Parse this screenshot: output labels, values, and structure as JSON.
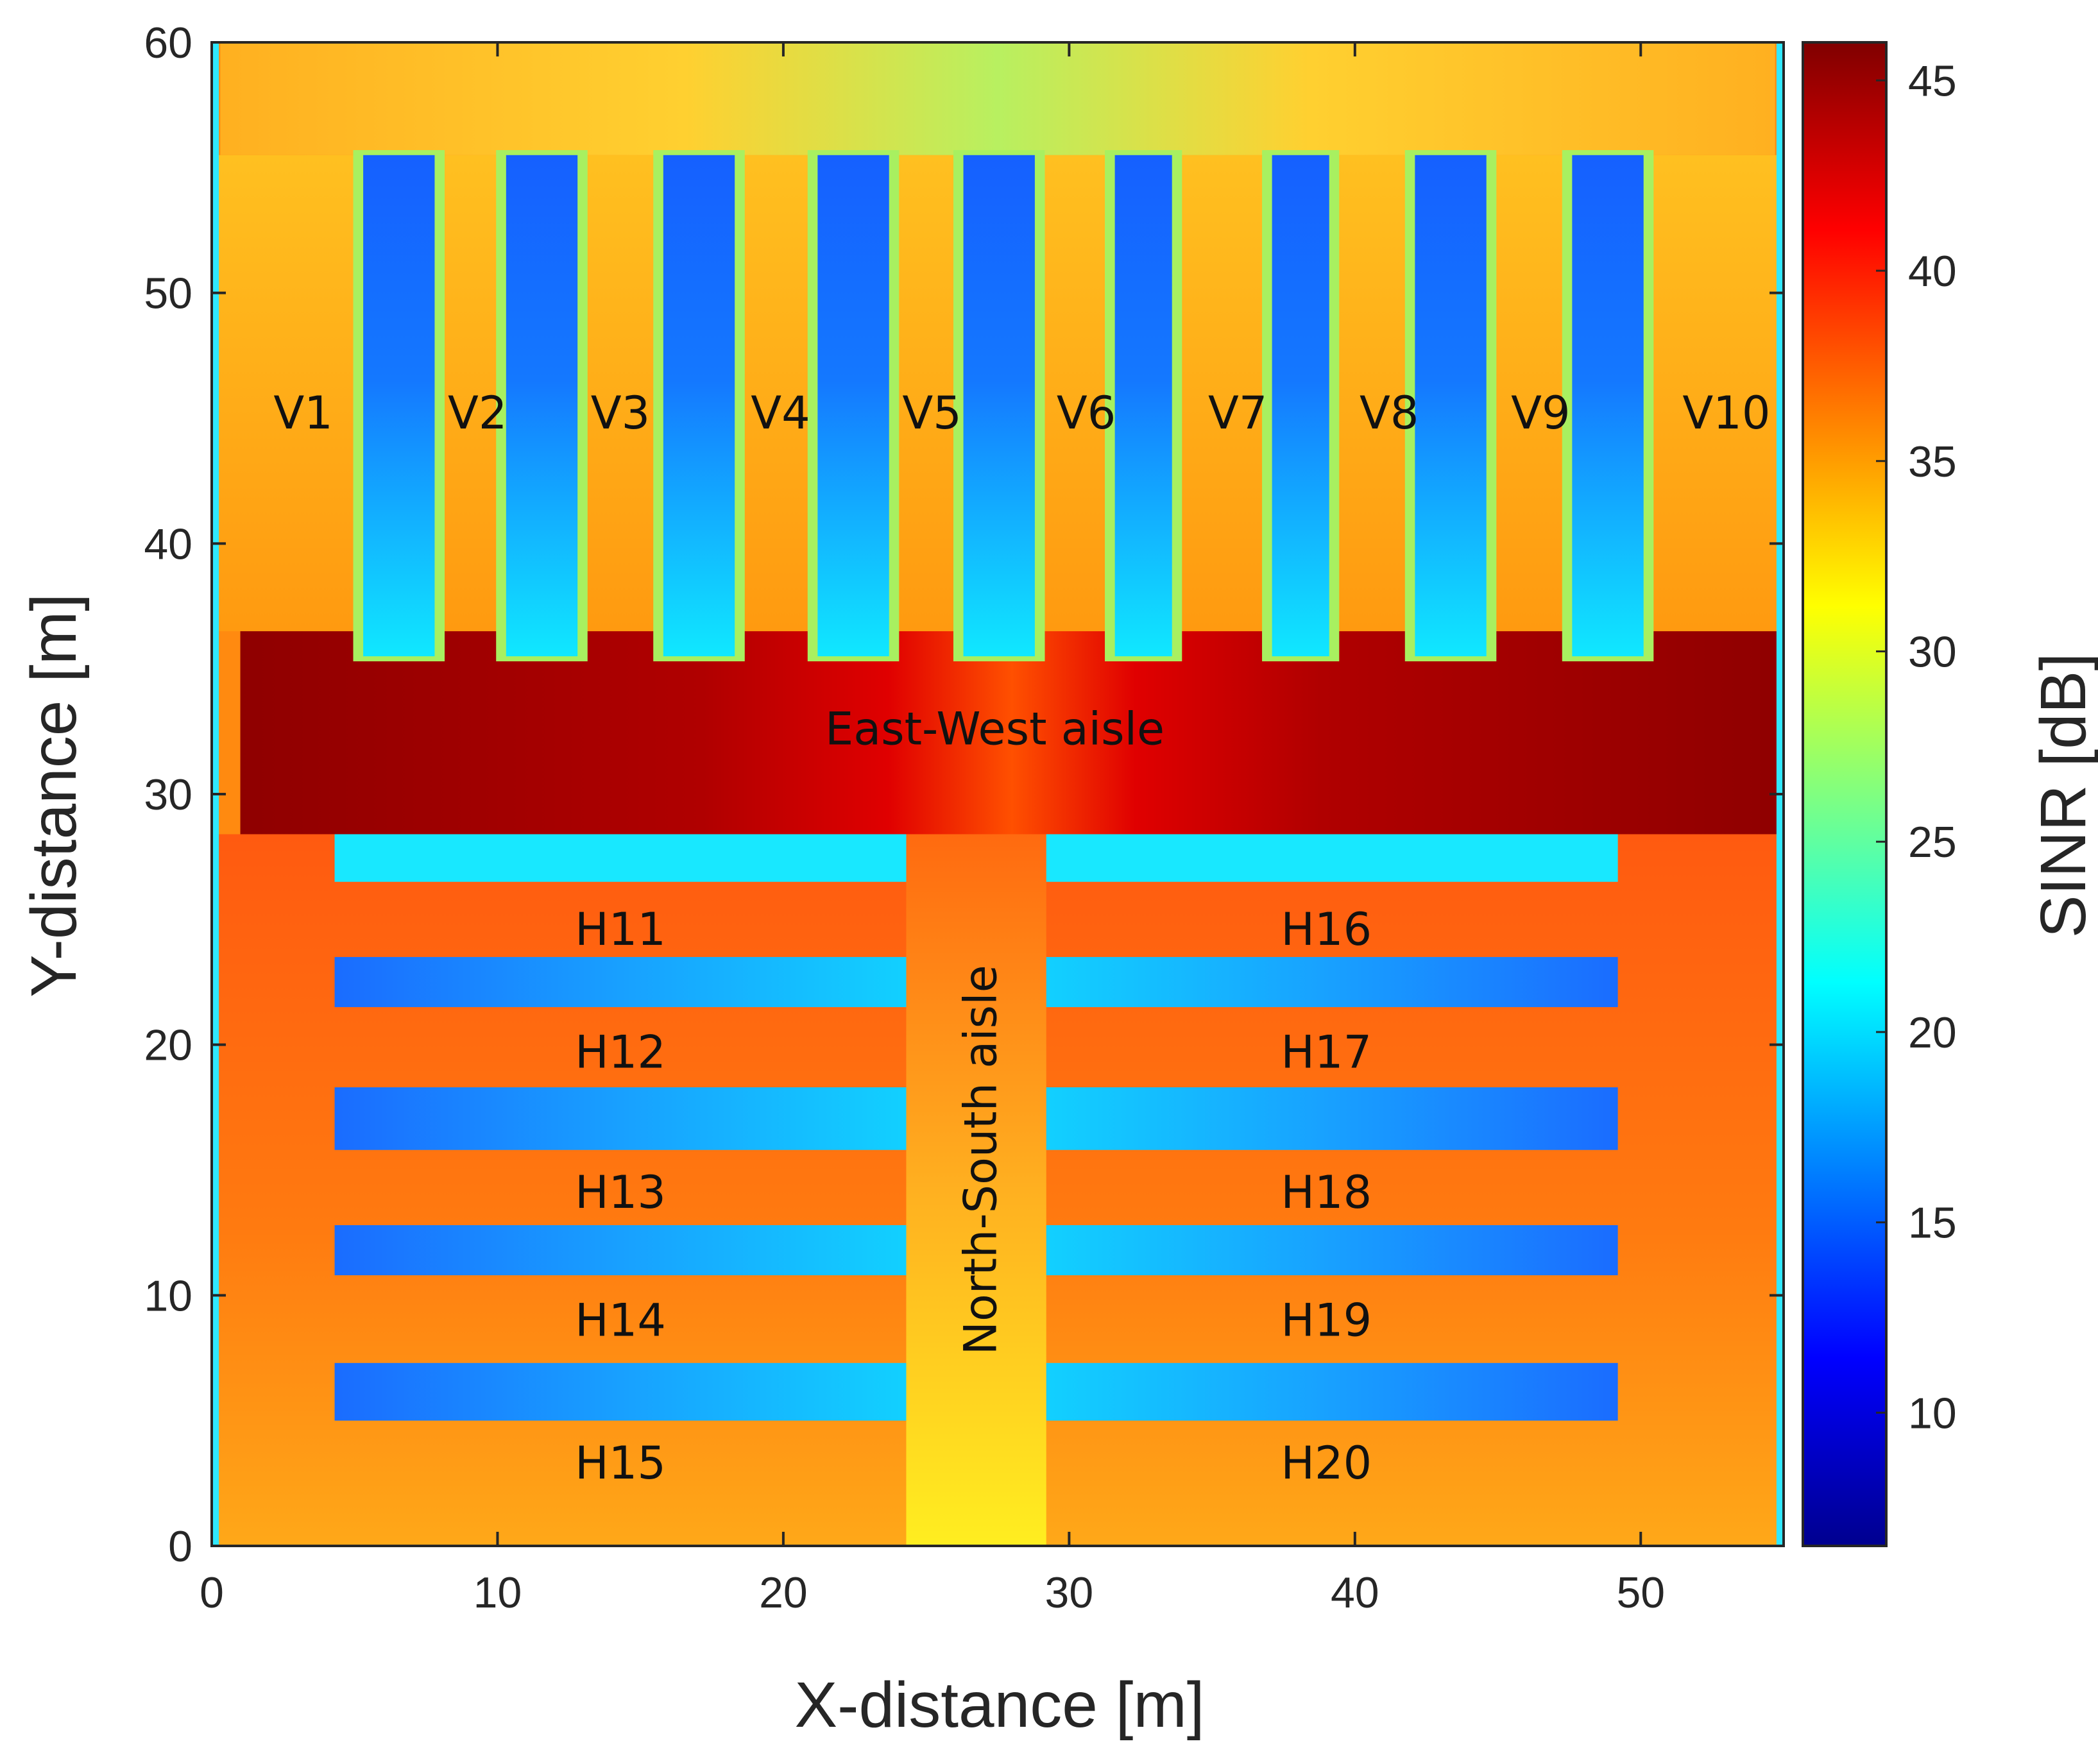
{
  "chart_data": {
    "type": "heatmap",
    "title": "",
    "xlabel": "X-distance [m]",
    "ylabel": "Y-distance [m]",
    "colorbar_label": "SINR [dB]",
    "xlim": [
      0,
      55
    ],
    "ylim": [
      0,
      60
    ],
    "clim": [
      6.5,
      46
    ],
    "x_ticks": [
      0,
      10,
      20,
      30,
      40,
      50
    ],
    "y_ticks": [
      0,
      10,
      20,
      30,
      40,
      50,
      60
    ],
    "colorbar_ticks": [
      10,
      15,
      20,
      25,
      30,
      35,
      40,
      45
    ],
    "colormap": [
      "#00008f",
      "#0000ff",
      "#0080ff",
      "#00ffff",
      "#80ff80",
      "#ffff00",
      "#ff8000",
      "#ff0000",
      "#800000"
    ],
    "regions": {
      "background_dB": 36,
      "east_west_aisle": {
        "x": [
          1,
          55
        ],
        "y": [
          28.4,
          36.5
        ],
        "sinr_dB": 44,
        "center_sinr_dB": 39
      },
      "north_south_aisle": {
        "x": [
          24.3,
          29.2
        ],
        "y": [
          0,
          28.4
        ],
        "sinr_dB": 33
      },
      "top_band": {
        "x": [
          0.3,
          54.7
        ],
        "y": [
          55.5,
          60
        ],
        "sinr_dB": 31
      },
      "vertical_racks": [
        {
          "x": [
            5.3,
            7.8
          ],
          "y": [
            35.5,
            55.5
          ]
        },
        {
          "x": [
            10.3,
            12.8
          ],
          "y": [
            35.5,
            55.5
          ]
        },
        {
          "x": [
            15.8,
            18.3
          ],
          "y": [
            35.5,
            55.5
          ]
        },
        {
          "x": [
            21.2,
            23.7
          ],
          "y": [
            35.5,
            55.5
          ]
        },
        {
          "x": [
            26.3,
            28.8
          ],
          "y": [
            35.5,
            55.5
          ]
        },
        {
          "x": [
            31.6,
            33.6
          ],
          "y": [
            35.5,
            55.5
          ]
        },
        {
          "x": [
            37.1,
            39.1
          ],
          "y": [
            35.5,
            55.5
          ]
        },
        {
          "x": [
            42.1,
            44.6
          ],
          "y": [
            35.5,
            55.5
          ]
        },
        {
          "x": [
            47.6,
            50.1
          ],
          "y": [
            35.5,
            55.5
          ]
        }
      ],
      "horizontal_racks": [
        {
          "y": [
            26.5,
            28.4
          ],
          "sinr_dB": 21
        },
        {
          "y": [
            21.5,
            23.5
          ],
          "sinr_dB": 19
        },
        {
          "y": [
            15.8,
            18.3
          ],
          "sinr_dB": 18.5
        },
        {
          "y": [
            10.8,
            12.8
          ],
          "sinr_dB": 18
        },
        {
          "y": [
            5.0,
            7.3
          ],
          "sinr_dB": 17.5
        }
      ],
      "horizontal_rack_x_spans": [
        [
          4.3,
          24.3
        ],
        [
          29.2,
          49.2
        ]
      ]
    },
    "annotations": [
      {
        "text": "V1",
        "x": 3.2,
        "y": 45.2
      },
      {
        "text": "V2",
        "x": 9.3,
        "y": 45.2
      },
      {
        "text": "V3",
        "x": 14.3,
        "y": 45.2
      },
      {
        "text": "V4",
        "x": 19.9,
        "y": 45.2
      },
      {
        "text": "V5",
        "x": 25.2,
        "y": 45.2
      },
      {
        "text": "V6",
        "x": 30.6,
        "y": 45.2
      },
      {
        "text": "V7",
        "x": 35.9,
        "y": 45.2
      },
      {
        "text": "V8",
        "x": 41.2,
        "y": 45.2
      },
      {
        "text": "V9",
        "x": 46.5,
        "y": 45.2
      },
      {
        "text": "V10",
        "x": 53.0,
        "y": 45.2
      },
      {
        "text": "East-West aisle",
        "x": 27.4,
        "y": 32.6
      },
      {
        "text": "North-South aisle",
        "x": 26.9,
        "y": 15.4,
        "rotation": -90
      },
      {
        "text": "H11",
        "x": 14.3,
        "y": 24.6
      },
      {
        "text": "H12",
        "x": 14.3,
        "y": 19.7
      },
      {
        "text": "H13",
        "x": 14.3,
        "y": 14.1
      },
      {
        "text": "H14",
        "x": 14.3,
        "y": 9.0
      },
      {
        "text": "H15",
        "x": 14.3,
        "y": 3.3
      },
      {
        "text": "H16",
        "x": 39.0,
        "y": 24.6
      },
      {
        "text": "H17",
        "x": 39.0,
        "y": 19.7
      },
      {
        "text": "H18",
        "x": 39.0,
        "y": 14.1
      },
      {
        "text": "H19",
        "x": 39.0,
        "y": 9.0
      },
      {
        "text": "H20",
        "x": 39.0,
        "y": 3.3
      }
    ]
  }
}
